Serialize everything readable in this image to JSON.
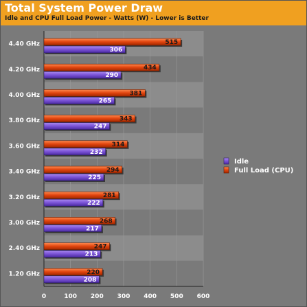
{
  "header": {
    "title": "Total System Power Draw",
    "subtitle": "Idle and CPU Full Load Power - Watts (W) - Lower is Better"
  },
  "colors": {
    "header_bg": "#f0a020",
    "plot_bg": "#7a7a7a",
    "band_light": "#8c8c8c",
    "idle_fill": "#7a52d6",
    "load_fill": "#e0440e",
    "value_label": "#ffffff",
    "load_value_label": "#1a1a1a"
  },
  "chart_data": {
    "type": "bar",
    "orientation": "horizontal",
    "title": "Total System Power Draw",
    "subtitle": "Idle and CPU Full Load Power - Watts (W) - Lower is Better",
    "categories": [
      "4.40 GHz",
      "4.20 GHz",
      "4.00 GHz",
      "3.80 GHz",
      "3.60 GHz",
      "3.40 GHz",
      "3.20 GHz",
      "3.00 GHz",
      "2.40 GHz",
      "1.20 GHz"
    ],
    "series": [
      {
        "name": "Full Load (CPU)",
        "values": [
          515,
          434,
          381,
          343,
          314,
          294,
          281,
          268,
          247,
          220
        ]
      },
      {
        "name": "Idle",
        "values": [
          306,
          290,
          265,
          247,
          232,
          225,
          222,
          217,
          213,
          208
        ]
      }
    ],
    "xlim": [
      0,
      600
    ],
    "xticks": [
      0,
      100,
      200,
      300,
      400,
      500,
      600
    ],
    "legend": [
      "Idle",
      "Full Load (CPU)"
    ],
    "legend_position": "right",
    "grid": true
  }
}
